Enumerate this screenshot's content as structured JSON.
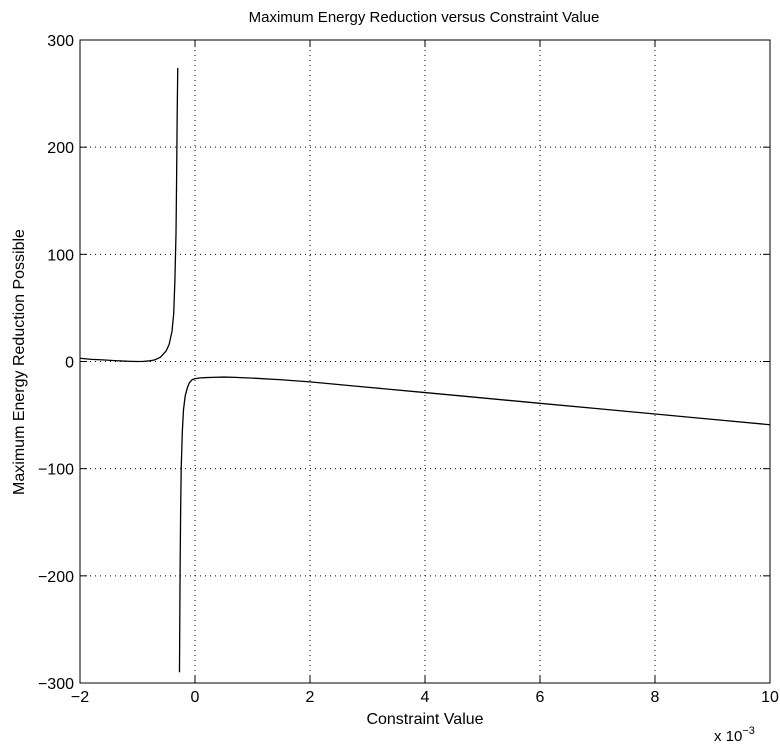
{
  "chart_data": {
    "type": "line",
    "title": "Maximum Energy Reduction versus Constraint Value",
    "xlabel": "Constraint Value",
    "ylabel": "Maximum Energy Reduction Possible",
    "x_multiplier_label": "x 10",
    "x_multiplier_exponent": "−3",
    "xlim": [
      -0.002,
      0.01
    ],
    "ylim": [
      -300,
      300
    ],
    "grid": true,
    "x_tick_values": [
      -0.002,
      0,
      0.002,
      0.004,
      0.006,
      0.008,
      0.01
    ],
    "x_tick_labels": [
      "−2",
      "0",
      "2",
      "4",
      "6",
      "8",
      "10"
    ],
    "y_tick_values": [
      300,
      200,
      100,
      0,
      -100,
      -200,
      -300
    ],
    "y_tick_labels": [
      "300",
      "200",
      "100",
      "0",
      "−100",
      "−200",
      "−300"
    ],
    "series": [
      {
        "x": [
          -0.002,
          -0.0018,
          -0.0016,
          -0.0014,
          -0.0012,
          -0.0011,
          -0.001,
          -0.0009,
          -0.0008,
          -0.0007,
          -0.0006,
          -0.0005,
          -0.00045,
          -0.0004,
          -0.00037,
          -0.00035,
          -0.00033,
          -0.00032,
          -0.00031,
          -0.0003
        ],
        "y": [
          3,
          2,
          1.5,
          0.8,
          0.3,
          0.1,
          0,
          0.1,
          0.5,
          1.5,
          4,
          10,
          16,
          28,
          45,
          75,
          120,
          170,
          230,
          274
        ]
      },
      {
        "x": [
          -0.00027,
          -0.00026,
          -0.00025,
          -0.00024,
          -0.00022,
          -0.0002,
          -0.00017,
          -0.00013,
          -0.0001,
          -5e-05,
          0,
          0.0001,
          0.0002,
          0.0003,
          0.0005,
          0.0007,
          0.001,
          0.0015,
          0.002,
          0.003,
          0.004,
          0.005,
          0.006,
          0.007,
          0.008,
          0.009,
          0.01
        ],
        "y": [
          -290,
          -200,
          -140,
          -100,
          -65,
          -45,
          -32,
          -24,
          -20,
          -17,
          -16,
          -15.3,
          -15,
          -14.8,
          -14.5,
          -14.8,
          -15.5,
          -17,
          -19,
          -24,
          -29,
          -34,
          -39,
          -44,
          -49,
          -54,
          -59
        ]
      }
    ]
  }
}
